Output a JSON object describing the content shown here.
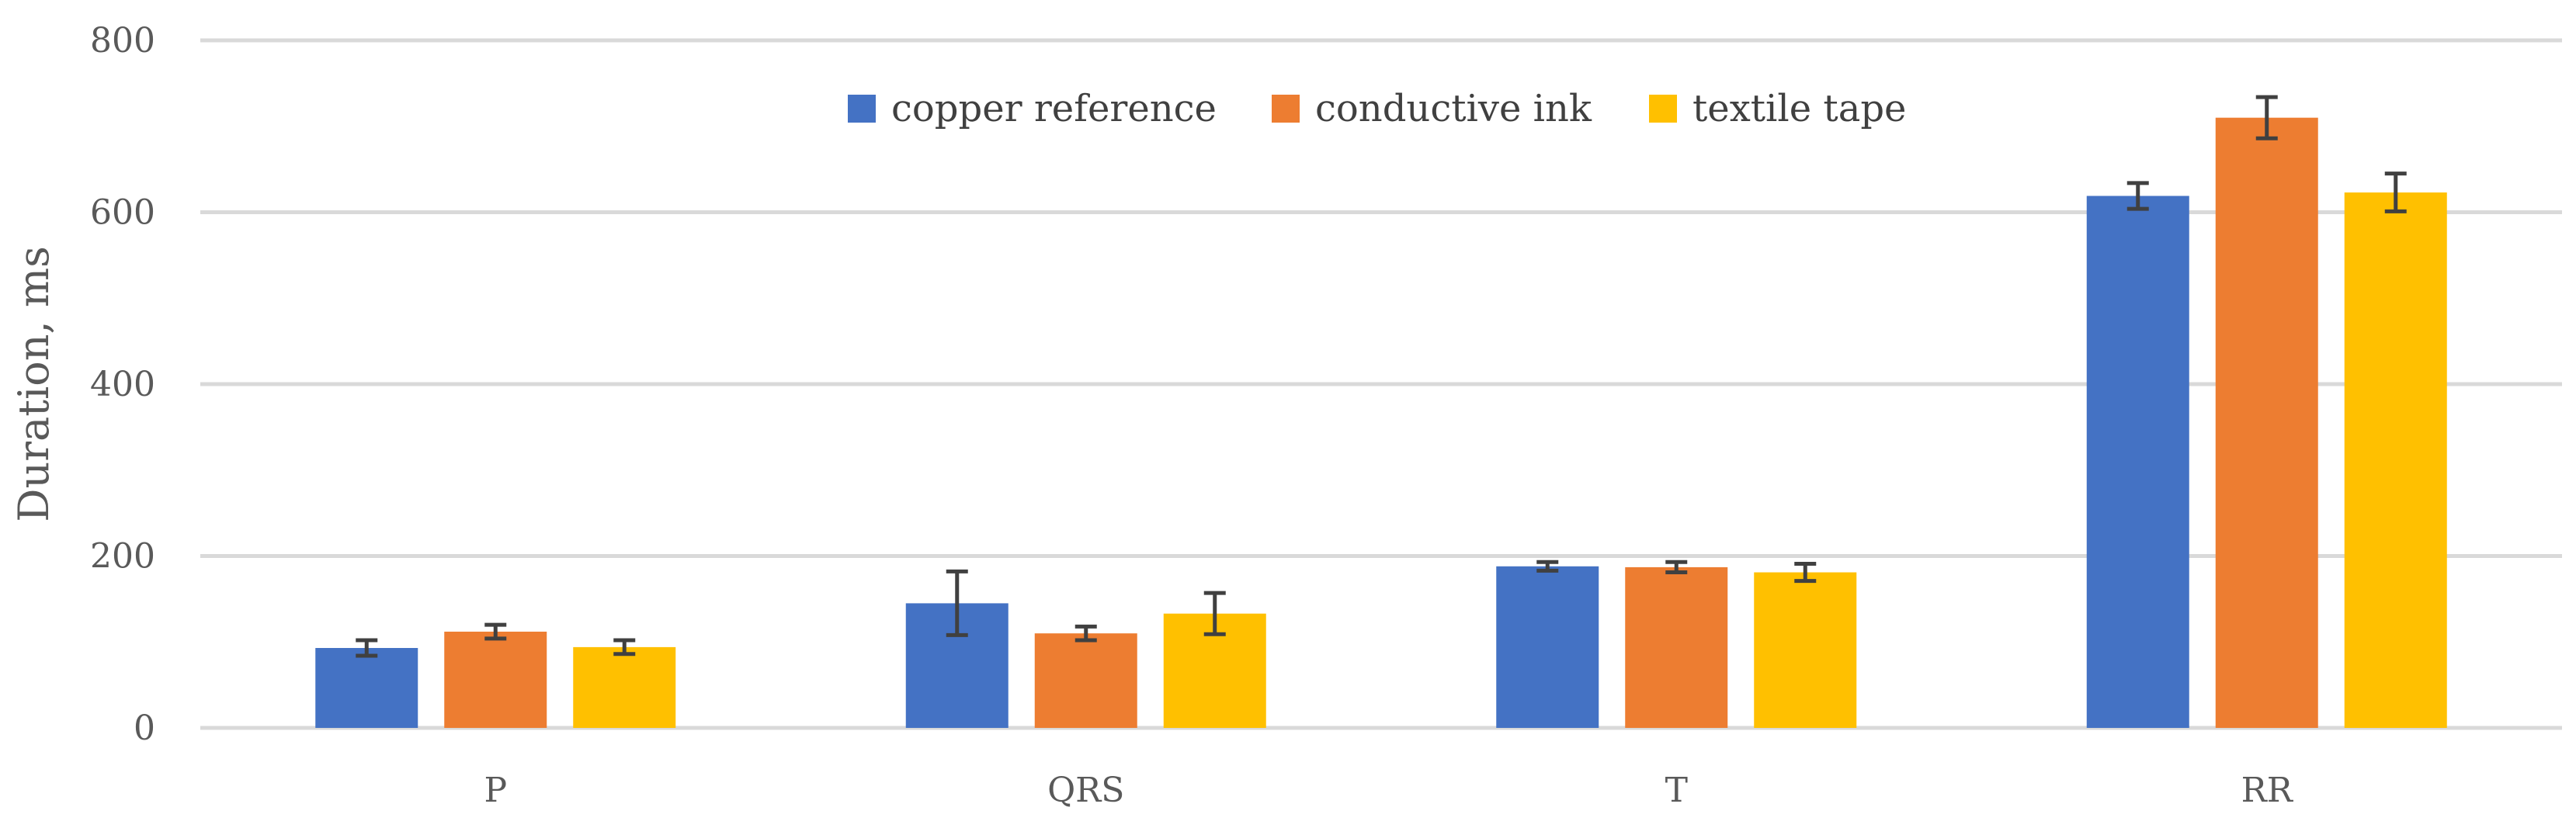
{
  "chart_data": {
    "type": "bar",
    "title": "",
    "xlabel": "",
    "ylabel": "Duration, ms",
    "ylim": [
      0,
      800
    ],
    "yticks": [
      0,
      200,
      400,
      600,
      800
    ],
    "grid": true,
    "legend_position": "top-center",
    "categories": [
      "P",
      "QRS",
      "T",
      "RR"
    ],
    "series": [
      {
        "name": "copper reference",
        "color": "#4472C4",
        "values": [
          93,
          145,
          188,
          619
        ],
        "errors": [
          9,
          37,
          5,
          15
        ]
      },
      {
        "name": "conductive ink",
        "color": "#ED7D31",
        "values": [
          112,
          110,
          187,
          710
        ],
        "errors": [
          8,
          8,
          6,
          24
        ]
      },
      {
        "name": "textile tape",
        "color": "#FFC000",
        "values": [
          94,
          133,
          181,
          623
        ],
        "errors": [
          8,
          24,
          10,
          22
        ]
      }
    ]
  }
}
